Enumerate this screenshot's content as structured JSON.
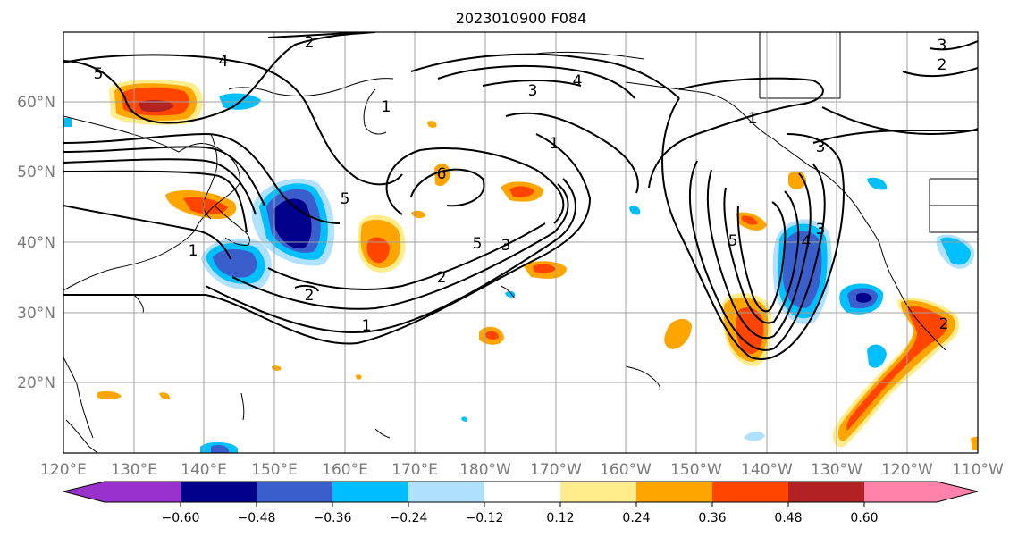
{
  "title": "2023010900 F084",
  "map": {
    "lat_labels": [
      "60°N",
      "50°N",
      "40°N",
      "30°N",
      "20°N"
    ],
    "lon_labels": [
      "120°E",
      "130°E",
      "140°E",
      "150°E",
      "160°E",
      "170°E",
      "180°W",
      "170°W",
      "160°W",
      "150°W",
      "140°W",
      "130°W",
      "120°W",
      "110°W"
    ],
    "contour_labels": [
      "5",
      "4",
      "2",
      "3",
      "4",
      "3",
      "2",
      "1",
      "1",
      "1",
      "5",
      "6",
      "5",
      "3",
      "2",
      "2",
      "1",
      "1",
      "5",
      "4",
      "3",
      "3",
      "2"
    ],
    "grid": true
  },
  "colorbar": {
    "ticks": [
      "−0.60",
      "−0.48",
      "−0.36",
      "−0.24",
      "−0.12",
      "0.12",
      "0.24",
      "0.36",
      "0.48",
      "0.60"
    ],
    "colors": [
      "#9932cc",
      "#00008b",
      "#3a5fcd",
      "#00bfff",
      "#b0e2ff",
      "#ffffff",
      "#ffec8b",
      "#ffa500",
      "#ff4500",
      "#b22222",
      "#ff82ab"
    ],
    "extend": "both"
  }
}
